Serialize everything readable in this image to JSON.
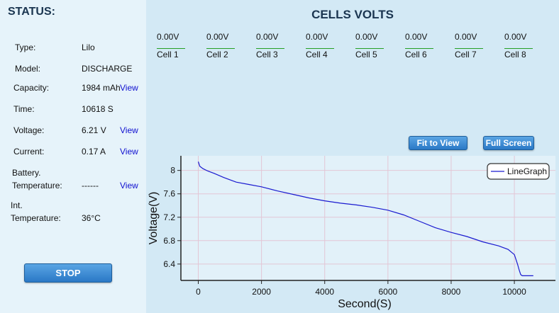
{
  "status": {
    "title": "STATUS:",
    "type": {
      "label": "Type:",
      "value": "Lilo"
    },
    "model": {
      "label": "Model:",
      "value": "DISCHARGE"
    },
    "capacity": {
      "label": "Capacity:",
      "value": "1984 mAh",
      "view": "View"
    },
    "time": {
      "label": "Time:",
      "value": "10618 S"
    },
    "voltage": {
      "label": "Voltage:",
      "value": "6.21 V",
      "view": "View"
    },
    "current": {
      "label": "Current:",
      "value": "0.17 A",
      "view": "View"
    },
    "battery_temp": {
      "label1": "Battery.",
      "label2": "Temperature:",
      "value": "------",
      "view": "View"
    },
    "int_temp": {
      "label1": "Int.",
      "label2": "Temperature:",
      "value": "36°C"
    },
    "stop_label": "STOP"
  },
  "cells": {
    "title": "CELLS VOLTS",
    "items": [
      {
        "value": "0.00V",
        "name": "Cell 1"
      },
      {
        "value": "0.00V",
        "name": "Cell 2"
      },
      {
        "value": "0.00V",
        "name": "Cell 3"
      },
      {
        "value": "0.00V",
        "name": "Cell 4"
      },
      {
        "value": "0.00V",
        "name": "Cell 5"
      },
      {
        "value": "0.00V",
        "name": "Cell 6"
      },
      {
        "value": "0.00V",
        "name": "Cell 7"
      },
      {
        "value": "0.00V",
        "name": "Cell 8"
      }
    ]
  },
  "buttons": {
    "fit": "Fit to View",
    "full": "Full Screen"
  },
  "colors": {
    "accent": "#2a78c6",
    "line": "#1a1ad0",
    "cell_line": "#25a025"
  },
  "chart_data": {
    "type": "line",
    "xlabel": "Second(S)",
    "ylabel": "Voltage(V)",
    "xlim": [
      -550,
      11300
    ],
    "ylim": [
      6.12,
      8.25
    ],
    "x_ticks": [
      0,
      2000,
      4000,
      6000,
      8000,
      10000
    ],
    "x_tick_labels": [
      "0",
      "2000",
      "4000",
      "6000",
      "8000",
      "10000"
    ],
    "y_ticks": [
      6.4,
      6.8,
      7.2,
      7.6,
      8.0
    ],
    "y_tick_labels": [
      "6.4",
      "6.8",
      "7.2",
      "7.6",
      "8"
    ],
    "grid": true,
    "legend": "top-right",
    "series": [
      {
        "name": "LineGraph",
        "x": [
          0,
          50,
          150,
          300,
          500,
          800,
          1200,
          1600,
          2000,
          2500,
          3000,
          3500,
          4000,
          4500,
          5000,
          5500,
          6000,
          6500,
          7000,
          7500,
          8000,
          8500,
          9000,
          9500,
          9800,
          10000,
          10100,
          10150,
          10200,
          10250,
          10600
        ],
        "y": [
          8.15,
          8.07,
          8.03,
          7.99,
          7.95,
          7.88,
          7.8,
          7.76,
          7.72,
          7.65,
          7.59,
          7.53,
          7.48,
          7.44,
          7.41,
          7.37,
          7.32,
          7.24,
          7.13,
          7.02,
          6.94,
          6.87,
          6.78,
          6.71,
          6.65,
          6.56,
          6.4,
          6.3,
          6.22,
          6.2,
          6.2
        ]
      }
    ]
  }
}
